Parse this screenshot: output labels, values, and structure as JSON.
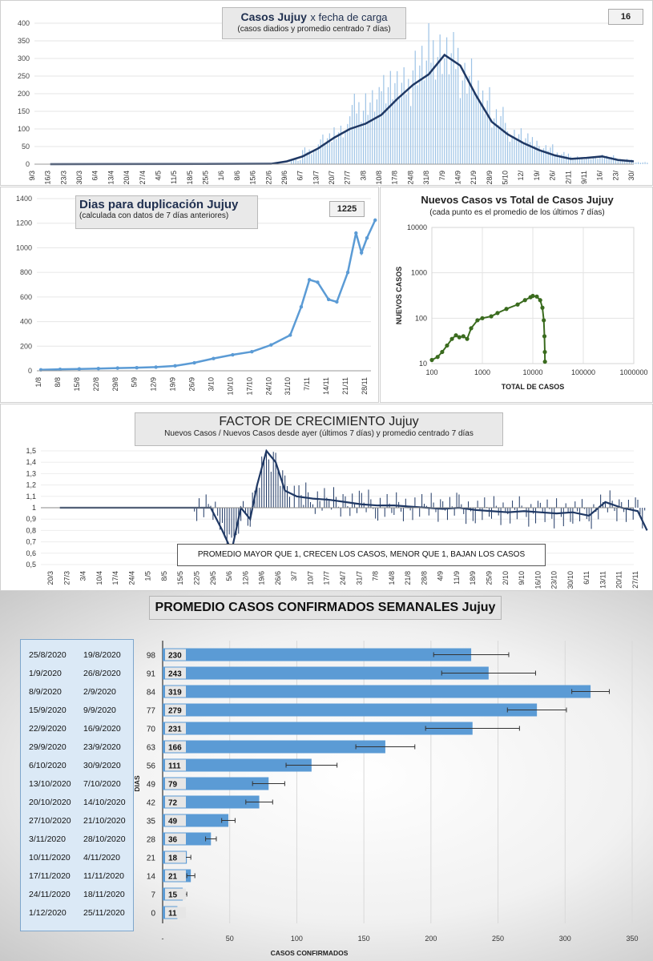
{
  "panels": {
    "casos": {
      "title_bold": "Casos Jujuy",
      "title_rest": "x fecha de carga",
      "subtitle": "(casos diadios y promedio  centrado 7 días)",
      "badge": "16"
    },
    "duplicacion": {
      "title": "Dias para duplicación Jujuy",
      "subtitle": "(calculada con datos de 7 días anteriores)",
      "badge": "1225"
    },
    "nuevos_vs_total": {
      "title": "Nuevos Casos vs Total de Casos Jujuy",
      "subtitle": "(cada punto es el promedio de los últimos 7 días)"
    },
    "factor": {
      "title": "FACTOR DE CRECIMIENTO Jujuy",
      "subtitle": "Nuevos Casos  / Nuevos Casos desde ayer (últimos 7 días) y promedio  centrado 7 días",
      "note": "PROMEDIO MAYOR QUE 1, CRECEN LOS CASOS, MENOR QUE 1, BAJAN LOS CASOS"
    },
    "semanales": {
      "title": "PROMEDIO CASOS CONFIRMADOS SEMANALES Jujuy"
    }
  },
  "colors": {
    "navy": "#1f3864",
    "bar_light": "#9dc3e6",
    "bar_blue": "#5b9bd5",
    "green": "#3a6b1e",
    "bottom_bar": "#5b9bd5"
  },
  "chart_data": [
    {
      "type": "bar",
      "title": "Casos Jujuy x fecha de carga",
      "subtitle": "(casos diadios y promedio  centrado 7 días)",
      "x_tick_labels": [
        "9/3",
        "16/3",
        "23/3",
        "30/3",
        "6/4",
        "13/4",
        "20/4",
        "27/4",
        "4/5",
        "11/5",
        "18/5",
        "25/5",
        "1/6",
        "8/6",
        "15/6",
        "22/6",
        "29/6",
        "6/7",
        "13/7",
        "20/7",
        "27/7",
        "3/8",
        "10/8",
        "17/8",
        "24/8",
        "31/8",
        "7/9",
        "14/9",
        "21/9",
        "28/9",
        "5/10",
        "12/",
        "19/",
        "26/",
        "2/11",
        "9/11",
        "16/",
        "23/",
        "30/"
      ],
      "ylim": [
        0,
        400
      ],
      "y_ticks": [
        0,
        50,
        100,
        150,
        200,
        250,
        300,
        350,
        400
      ],
      "series": [
        {
          "type": "bar",
          "x": [
            "1/7",
            "6/7",
            "13/7",
            "20/7",
            "27/7",
            "3/8",
            "10/8",
            "17/8",
            "24/8",
            "31/8",
            "7/9",
            "14/9",
            "21/9",
            "28/9",
            "5/10",
            "12/10",
            "19/10",
            "26/10",
            "2/11",
            "9/11",
            "16/11",
            "23/11",
            "30/11"
          ],
          "values": [
            12,
            38,
            70,
            95,
            160,
            175,
            230,
            220,
            280,
            320,
            300,
            250,
            190,
            130,
            85,
            70,
            45,
            30,
            18,
            18,
            22,
            12,
            5
          ]
        },
        {
          "type": "line",
          "x": [
            "16/3",
            "22/6",
            "29/6",
            "6/7",
            "13/7",
            "20/7",
            "27/7",
            "3/8",
            "10/8",
            "17/8",
            "24/8",
            "31/8",
            "7/9",
            "14/9",
            "21/9",
            "28/9",
            "5/10",
            "12/10",
            "19/10",
            "26/10",
            "2/11",
            "9/11",
            "16/11",
            "23/11",
            "30/11"
          ],
          "values": [
            0,
            1,
            8,
            22,
            45,
            75,
            100,
            115,
            140,
            185,
            225,
            255,
            310,
            280,
            195,
            120,
            85,
            60,
            40,
            25,
            15,
            18,
            22,
            12,
            8
          ]
        }
      ],
      "badge": "16"
    },
    {
      "type": "line",
      "title": "Dias para duplicación Jujuy",
      "subtitle": "(calculada con datos de 7 días anteriores)",
      "x_tick_labels": [
        "1/8",
        "8/8",
        "15/8",
        "22/8",
        "29/8",
        "5/9",
        "12/9",
        "19/9",
        "26/9",
        "3/10",
        "10/10",
        "17/10",
        "24/10",
        "31/10",
        "7/11",
        "14/11",
        "21/11",
        "28/11"
      ],
      "ylim": [
        0,
        1400
      ],
      "y_ticks": [
        0,
        200,
        400,
        600,
        800,
        1000,
        1200,
        1400
      ],
      "series": [
        {
          "x": [
            "1/8",
            "8/8",
            "15/8",
            "22/8",
            "29/8",
            "5/9",
            "12/9",
            "19/9",
            "26/9",
            "3/10",
            "10/10",
            "17/10",
            "24/10",
            "31/10",
            "4/11",
            "7/11",
            "10/11",
            "14/11",
            "17/11",
            "21/11",
            "24/11",
            "26/11",
            "28/11",
            "1/12"
          ],
          "values": [
            8,
            12,
            15,
            18,
            22,
            25,
            30,
            40,
            65,
            100,
            130,
            155,
            210,
            290,
            520,
            740,
            720,
            580,
            560,
            800,
            1120,
            960,
            1080,
            1225
          ]
        }
      ],
      "badge": "1225"
    },
    {
      "type": "scatter",
      "title": "Nuevos Casos vs Total de Casos Jujuy",
      "subtitle": "(cada punto es el promedio de los últimos 7 días)",
      "xlabel": "TOTAL DE CASOS",
      "ylabel": "NUEVOS CASOS",
      "x_scale": "log",
      "y_scale": "log",
      "xlim": [
        100,
        1000000
      ],
      "ylim": [
        10,
        10000
      ],
      "x_tick_labels": [
        "100",
        "1000",
        "10000",
        "100000",
        "1000000"
      ],
      "y_tick_labels": [
        "10",
        "100",
        "1000",
        "10000"
      ],
      "series": [
        {
          "x": [
            100,
            130,
            160,
            200,
            250,
            300,
            350,
            420,
            500,
            600,
            800,
            1000,
            1500,
            2000,
            3000,
            5000,
            7000,
            9000,
            10000,
            12000,
            14000,
            15500,
            16500,
            17000,
            17300,
            17400
          ],
          "values": [
            12,
            14,
            18,
            25,
            35,
            42,
            38,
            40,
            35,
            60,
            90,
            100,
            110,
            130,
            160,
            200,
            250,
            290,
            310,
            300,
            250,
            170,
            90,
            40,
            18,
            11
          ]
        }
      ]
    },
    {
      "type": "bar",
      "title": "FACTOR DE CRECIMIENTO Jujuy",
      "subtitle": "Nuevos Casos  / Nuevos Casos desde ayer (últimos 7 días) y promedio  centrado 7 días",
      "x_tick_labels": [
        "20/3",
        "27/3",
        "3/4",
        "10/4",
        "17/4",
        "24/4",
        "1/5",
        "8/5",
        "15/5",
        "22/5",
        "29/5",
        "5/6",
        "12/6",
        "19/6",
        "26/6",
        "3/7",
        "10/7",
        "17/7",
        "24/7",
        "31/7",
        "7/8",
        "14/8",
        "21/8",
        "28/8",
        "4/9",
        "11/9",
        "18/9",
        "25/9",
        "2/10",
        "9/10",
        "16/10",
        "23/10",
        "30/10",
        "6/11",
        "13/11",
        "20/11",
        "27/11"
      ],
      "ylim": [
        0.5,
        1.5
      ],
      "y_tick_labels": [
        "0,5",
        "0,6",
        "0,7",
        "0,8",
        "0,9",
        "1",
        "1,1",
        "1,2",
        "1,3",
        "1,4",
        "1,5"
      ],
      "series": [
        {
          "type": "line",
          "x": [
            "23/3",
            "3/4",
            "20/5",
            "27/5",
            "1/6",
            "5/6",
            "9/6",
            "13/6",
            "16/6",
            "20/6",
            "24/6",
            "28/6",
            "3/7",
            "10/7",
            "17/7",
            "24/7",
            "31/7",
            "7/8",
            "14/8",
            "21/8",
            "28/8",
            "4/9",
            "11/9",
            "18/9",
            "25/9",
            "2/10",
            "9/10",
            "16/10",
            "23/10",
            "30/10",
            "6/11",
            "13/11",
            "20/11",
            "27/11",
            "1/12"
          ],
          "values": [
            1,
            1,
            1,
            1,
            0.8,
            0.62,
            1,
            0.9,
            1.2,
            1.5,
            1.4,
            1.15,
            1.1,
            1.08,
            1.07,
            1.05,
            1.03,
            1.02,
            1.02,
            1.01,
            1.0,
            0.99,
            1.0,
            0.98,
            0.97,
            0.96,
            0.97,
            0.96,
            0.95,
            0.96,
            0.93,
            1.05,
            1.0,
            0.97,
            0.8
          ]
        }
      ],
      "annotation": "PROMEDIO MAYOR QUE 1, CRECEN LOS CASOS, MENOR QUE 1, BAJAN LOS CASOS"
    },
    {
      "type": "bar",
      "orientation": "horizontal",
      "title": "PROMEDIO CASOS CONFIRMADOS SEMANALES Jujuy",
      "xlabel": "CASOS CONFIRMADOS",
      "ylabel": "DIAS",
      "xlim": [
        0,
        350
      ],
      "x_tick_labels": [
        "-",
        "50",
        "100",
        "150",
        "200",
        "250",
        "300",
        "350"
      ],
      "rows": [
        {
          "date_end": "25/8/2020",
          "date_start": "19/8/2020",
          "dias": "98",
          "value": 230,
          "err": 28
        },
        {
          "date_end": "1/9/2020",
          "date_start": "26/8/2020",
          "dias": "91",
          "value": 243,
          "err": 35
        },
        {
          "date_end": "8/9/2020",
          "date_start": "2/9/2020",
          "dias": "84",
          "value": 319,
          "err": 14
        },
        {
          "date_end": "15/9/2020",
          "date_start": "9/9/2020",
          "dias": "77",
          "value": 279,
          "err": 22
        },
        {
          "date_end": "22/9/2020",
          "date_start": "16/9/2020",
          "dias": "70",
          "value": 231,
          "err": 35
        },
        {
          "date_end": "29/9/2020",
          "date_start": "23/9/2020",
          "dias": "63",
          "value": 166,
          "err": 22
        },
        {
          "date_end": "6/10/2020",
          "date_start": "30/9/2020",
          "dias": "56",
          "value": 111,
          "err": 19
        },
        {
          "date_end": "13/10/2020",
          "date_start": "7/10/2020",
          "dias": "49",
          "value": 79,
          "err": 12
        },
        {
          "date_end": "20/10/2020",
          "date_start": "14/10/2020",
          "dias": "42",
          "value": 72,
          "err": 10
        },
        {
          "date_end": "27/10/2020",
          "date_start": "21/10/2020",
          "dias": "35",
          "value": 49,
          "err": 5
        },
        {
          "date_end": "3/11/2020",
          "date_start": "28/10/2020",
          "dias": "28",
          "value": 36,
          "err": 4
        },
        {
          "date_end": "10/11/2020",
          "date_start": "4/11/2020",
          "dias": "21",
          "value": 18,
          "err": 3
        },
        {
          "date_end": "17/11/2020",
          "date_start": "11/11/2020",
          "dias": "14",
          "value": 21,
          "err": 3
        },
        {
          "date_end": "24/11/2020",
          "date_start": "18/11/2020",
          "dias": "7",
          "value": 15,
          "err": 3
        },
        {
          "date_end": "1/12/2020",
          "date_start": "25/11/2020",
          "dias": "0",
          "value": 11,
          "err": 2
        }
      ]
    }
  ]
}
